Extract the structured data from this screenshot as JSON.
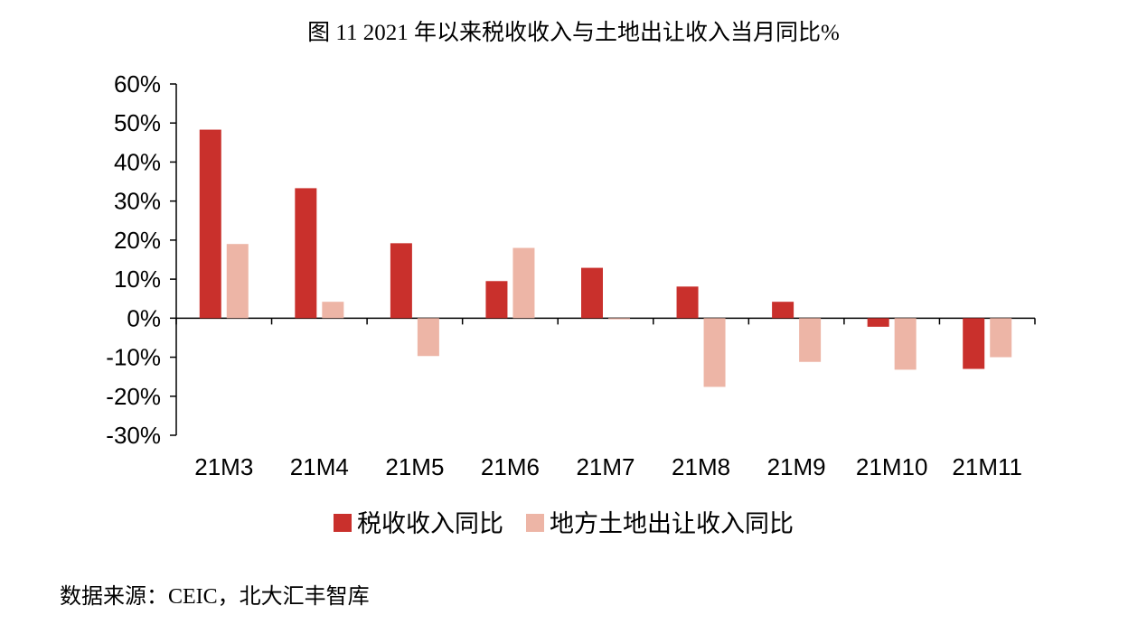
{
  "chart_data": {
    "type": "bar",
    "title": "图 11 2021 年以来税收收入与土地出让收入当月同比%",
    "categories": [
      "21M3",
      "21M4",
      "21M5",
      "21M6",
      "21M7",
      "21M8",
      "21M9",
      "21M10",
      "21M11"
    ],
    "series": [
      {
        "name": "税收收入同比",
        "color": "#c9302c",
        "values": [
          48.3,
          33.3,
          19.2,
          9.5,
          12.9,
          8.1,
          4.2,
          -2.2,
          -13.0
        ]
      },
      {
        "name": "地方土地出让收入同比",
        "color": "#edb5a6",
        "values": [
          19.0,
          4.2,
          -9.7,
          18.0,
          -0.3,
          -17.6,
          -11.2,
          -13.2,
          -10.0
        ]
      }
    ],
    "xlabel": "",
    "ylabel": "",
    "ylim": [
      -30,
      60
    ],
    "yticks": [
      -30,
      -20,
      -10,
      0,
      10,
      20,
      30,
      40,
      50,
      60
    ],
    "ytick_labels": [
      "-30%",
      "-20%",
      "-10%",
      "0%",
      "10%",
      "20%",
      "30%",
      "40%",
      "50%",
      "60%"
    ],
    "grid": false,
    "legend_position": "bottom"
  },
  "source": "数据来源：CEIC，北大汇丰智库"
}
